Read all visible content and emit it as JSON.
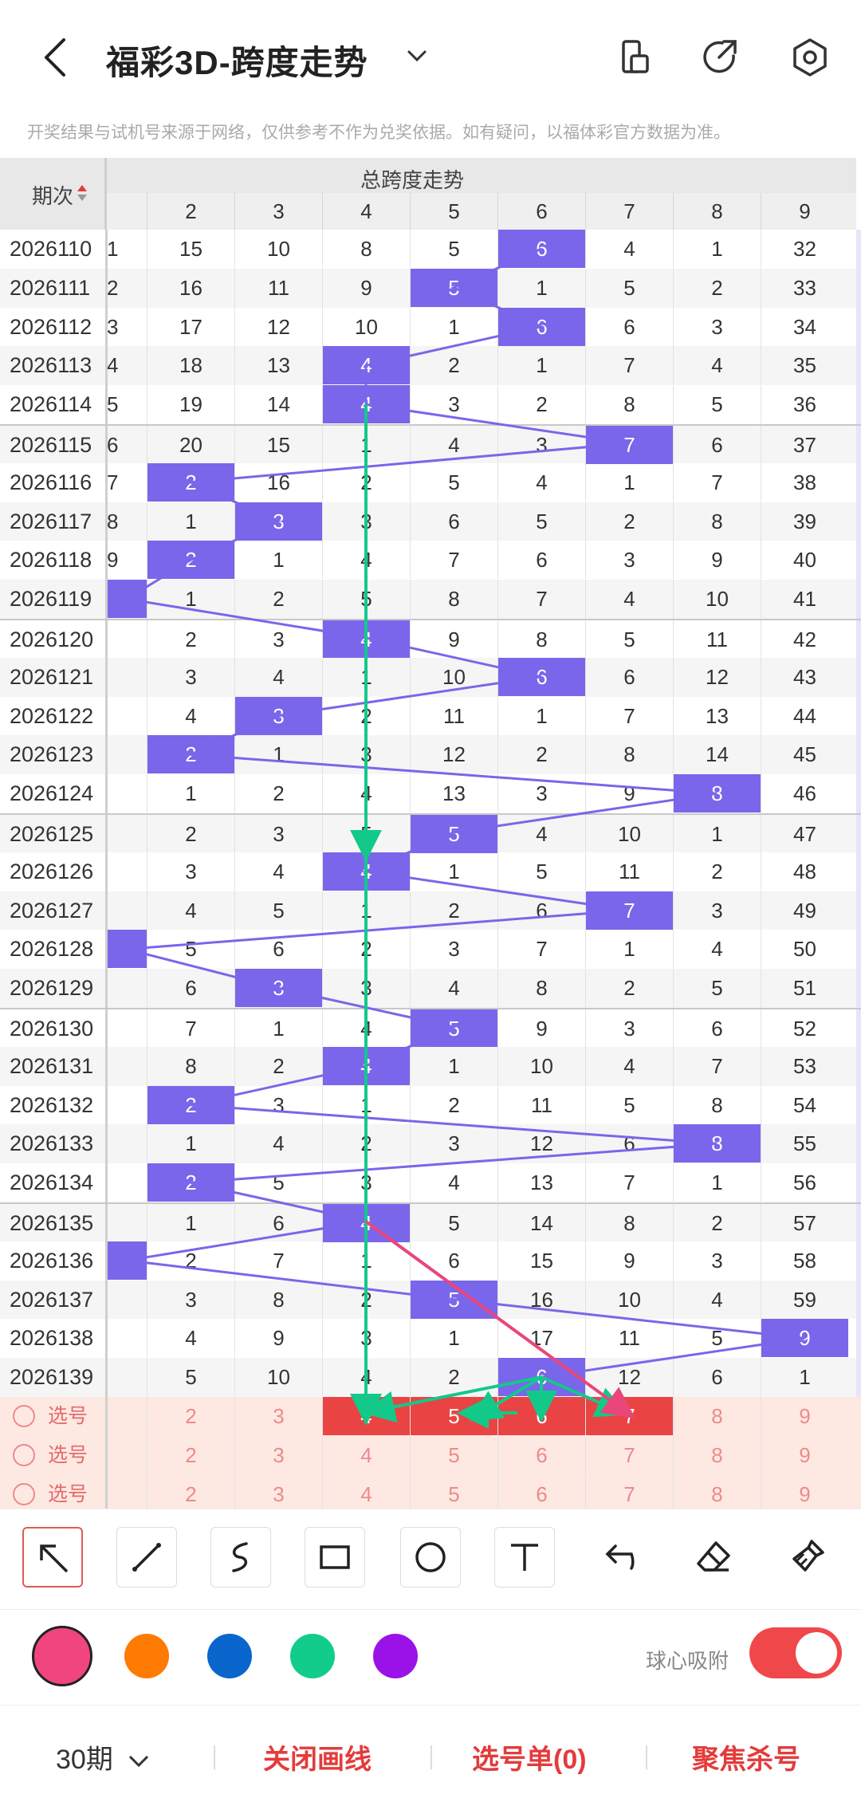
{
  "header": {
    "title": "福彩3D-跨度走势",
    "notice": "开奖结果与试机号来源于网络，仅供参考不作为兑奖依据。如有疑问，以福体彩官方数据为准。"
  },
  "table": {
    "period_label": "期次",
    "section_label": "总跨度走势",
    "columns": [
      "2",
      "3",
      "4",
      "5",
      "6",
      "7",
      "8",
      "9"
    ],
    "rows": [
      {
        "period": "2026110",
        "lead": "1",
        "cells": [
          "15",
          "10",
          "8",
          "5",
          "6",
          "4",
          "1",
          "32"
        ],
        "hit": 4
      },
      {
        "period": "2026111",
        "lead": "2",
        "cells": [
          "16",
          "11",
          "9",
          "5",
          "1",
          "5",
          "2",
          "33"
        ],
        "hit": 3
      },
      {
        "period": "2026112",
        "lead": "3",
        "cells": [
          "17",
          "12",
          "10",
          "1",
          "6",
          "6",
          "3",
          "34"
        ],
        "hit": 4
      },
      {
        "period": "2026113",
        "lead": "4",
        "cells": [
          "18",
          "13",
          "4",
          "2",
          "1",
          "7",
          "4",
          "35"
        ],
        "hit": 2
      },
      {
        "period": "2026114",
        "lead": "5",
        "cells": [
          "19",
          "14",
          "4",
          "3",
          "2",
          "8",
          "5",
          "36"
        ],
        "hit": 2
      },
      {
        "period": "2026115",
        "lead": "6",
        "cells": [
          "20",
          "15",
          "1",
          "4",
          "3",
          "7",
          "6",
          "37"
        ],
        "hit": 5
      },
      {
        "period": "2026116",
        "lead": "7",
        "cells": [
          "2",
          "16",
          "2",
          "5",
          "4",
          "1",
          "7",
          "38"
        ],
        "hit": 0
      },
      {
        "period": "2026117",
        "lead": "8",
        "cells": [
          "1",
          "3",
          "3",
          "6",
          "5",
          "2",
          "8",
          "39"
        ],
        "hit": 1
      },
      {
        "period": "2026118",
        "lead": "9",
        "cells": [
          "2",
          "1",
          "4",
          "7",
          "6",
          "3",
          "9",
          "40"
        ],
        "hit": 0
      },
      {
        "period": "2026119",
        "lead": "",
        "cells": [
          "1",
          "2",
          "5",
          "8",
          "7",
          "4",
          "10",
          "41"
        ],
        "hit": -1
      },
      {
        "period": "2026120",
        "lead": "",
        "cells": [
          "2",
          "3",
          "4",
          "9",
          "8",
          "5",
          "11",
          "42"
        ],
        "hit": 2
      },
      {
        "period": "2026121",
        "lead": "",
        "cells": [
          "3",
          "4",
          "1",
          "10",
          "6",
          "6",
          "12",
          "43"
        ],
        "hit": 4
      },
      {
        "period": "2026122",
        "lead": "",
        "cells": [
          "4",
          "3",
          "2",
          "11",
          "1",
          "7",
          "13",
          "44"
        ],
        "hit": 1
      },
      {
        "period": "2026123",
        "lead": "",
        "cells": [
          "2",
          "1",
          "3",
          "12",
          "2",
          "8",
          "14",
          "45"
        ],
        "hit": 0
      },
      {
        "period": "2026124",
        "lead": "",
        "cells": [
          "1",
          "2",
          "4",
          "13",
          "3",
          "9",
          "8",
          "46"
        ],
        "hit": 6
      },
      {
        "period": "2026125",
        "lead": "",
        "cells": [
          "2",
          "3",
          "5",
          "5",
          "4",
          "10",
          "1",
          "47"
        ],
        "hit": 3
      },
      {
        "period": "2026126",
        "lead": "",
        "cells": [
          "3",
          "4",
          "4",
          "1",
          "5",
          "11",
          "2",
          "48"
        ],
        "hit": 2
      },
      {
        "period": "2026127",
        "lead": "",
        "cells": [
          "4",
          "5",
          "1",
          "2",
          "6",
          "7",
          "3",
          "49"
        ],
        "hit": 5
      },
      {
        "period": "2026128",
        "lead": "",
        "cells": [
          "5",
          "6",
          "2",
          "3",
          "7",
          "1",
          "4",
          "50"
        ],
        "hit": -1
      },
      {
        "period": "2026129",
        "lead": "",
        "cells": [
          "6",
          "3",
          "3",
          "4",
          "8",
          "2",
          "5",
          "51"
        ],
        "hit": 1
      },
      {
        "period": "2026130",
        "lead": "",
        "cells": [
          "7",
          "1",
          "4",
          "5",
          "9",
          "3",
          "6",
          "52"
        ],
        "hit": 3
      },
      {
        "period": "2026131",
        "lead": "",
        "cells": [
          "8",
          "2",
          "4",
          "1",
          "10",
          "4",
          "7",
          "53"
        ],
        "hit": 2
      },
      {
        "period": "2026132",
        "lead": "",
        "cells": [
          "2",
          "3",
          "1",
          "2",
          "11",
          "5",
          "8",
          "54"
        ],
        "hit": 0
      },
      {
        "period": "2026133",
        "lead": "",
        "cells": [
          "1",
          "4",
          "2",
          "3",
          "12",
          "6",
          "8",
          "55"
        ],
        "hit": 6
      },
      {
        "period": "2026134",
        "lead": "",
        "cells": [
          "2",
          "5",
          "3",
          "4",
          "13",
          "7",
          "1",
          "56"
        ],
        "hit": 0
      },
      {
        "period": "2026135",
        "lead": "",
        "cells": [
          "1",
          "6",
          "4",
          "5",
          "14",
          "8",
          "2",
          "57"
        ],
        "hit": 2
      },
      {
        "period": "2026136",
        "lead": "",
        "cells": [
          "2",
          "7",
          "1",
          "6",
          "15",
          "9",
          "3",
          "58"
        ],
        "hit": -1
      },
      {
        "period": "2026137",
        "lead": "",
        "cells": [
          "3",
          "8",
          "2",
          "5",
          "16",
          "10",
          "4",
          "59"
        ],
        "hit": 3
      },
      {
        "period": "2026138",
        "lead": "",
        "cells": [
          "4",
          "9",
          "3",
          "1",
          "17",
          "11",
          "5",
          "9"
        ],
        "hit": 7
      },
      {
        "period": "2026139",
        "lead": "",
        "cells": [
          "5",
          "10",
          "4",
          "2",
          "6",
          "12",
          "6",
          "1"
        ],
        "hit": 4
      }
    ],
    "pick_label": "选号",
    "pick_rows": [
      {
        "cells": [
          "2",
          "3",
          "4",
          "5",
          "6",
          "7",
          "8",
          "9"
        ],
        "selected": [
          2,
          3,
          4,
          5
        ]
      },
      {
        "cells": [
          "2",
          "3",
          "4",
          "5",
          "6",
          "7",
          "8",
          "9"
        ],
        "selected": []
      },
      {
        "cells": [
          "2",
          "3",
          "4",
          "5",
          "6",
          "7",
          "8",
          "9"
        ],
        "selected": []
      }
    ]
  },
  "tools": [
    "arrow-tool",
    "line-tool",
    "curve-tool",
    "rectangle-tool",
    "circle-tool",
    "text-tool",
    "undo-tool",
    "eraser-tool",
    "clear-tool"
  ],
  "colors": [
    "#f0457f",
    "#ff7a00",
    "#0a66cc",
    "#12cc8a",
    "#9b12e8"
  ],
  "snap_label": "球心吸附",
  "bottom": {
    "period_select": "30期",
    "close_drawing": "关闭画线",
    "pick_list": "选号单(0)",
    "focus_kill": "聚焦杀号"
  }
}
